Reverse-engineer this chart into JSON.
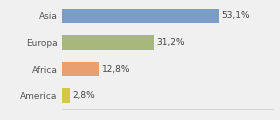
{
  "categories": [
    "Asia",
    "Europa",
    "Africa",
    "America"
  ],
  "values": [
    53.1,
    31.2,
    12.8,
    2.8
  ],
  "labels": [
    "53,1%",
    "31,2%",
    "12,8%",
    "2,8%"
  ],
  "bar_colors": [
    "#7b9cc5",
    "#a8b87a",
    "#e8a070",
    "#d4c840"
  ],
  "background_color": "#f0f0f0",
  "xlim": [
    0,
    72
  ],
  "bar_height": 0.55,
  "label_fontsize": 6.5,
  "tick_fontsize": 6.5
}
